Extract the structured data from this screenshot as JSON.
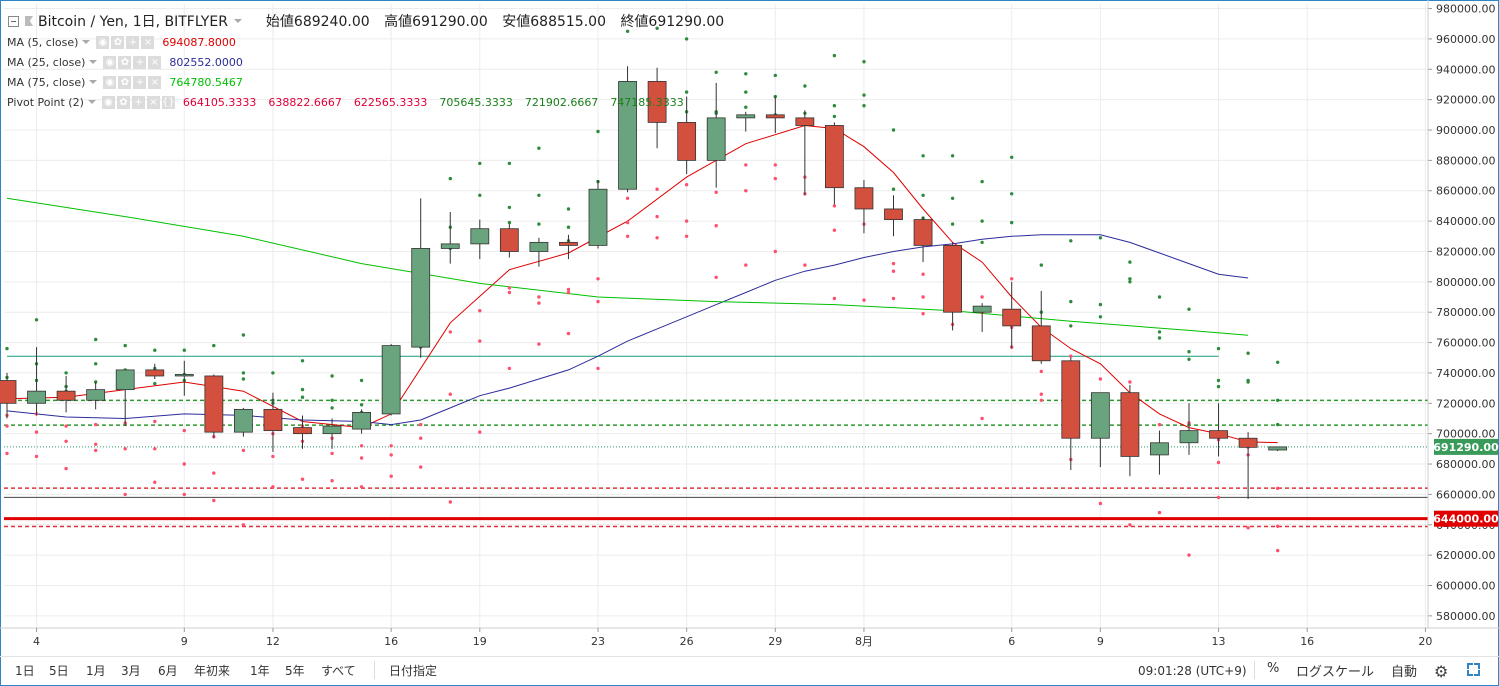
{
  "header": {
    "symbol": "Bitcoin / Yen, 1日, BITFLYER",
    "open": "始値689240.00",
    "high": "高値691290.00",
    "low": "安値688515.00",
    "close": "終値691290.00"
  },
  "indicators": [
    {
      "name": "MA (5, close)",
      "values": [
        "694087.8000"
      ],
      "colors": [
        "#e00000"
      ]
    },
    {
      "name": "MA (25, close)",
      "values": [
        "802552.0000"
      ],
      "colors": [
        "#2c2c9c"
      ]
    },
    {
      "name": "MA (75, close)",
      "values": [
        "764780.5467"
      ],
      "colors": [
        "#00c000"
      ]
    },
    {
      "name": "Pivot Point (2)",
      "values": [
        "664105.3333",
        "638822.6667",
        "622565.3333",
        "705645.3333",
        "721902.6667",
        "747185.3333"
      ],
      "colors": [
        "#e0003a",
        "#e0003a",
        "#e0003a",
        "#1a7f1a",
        "#1a7f1a",
        "#1a7f1a"
      ]
    }
  ],
  "chart_data": {
    "type": "candlestick",
    "y_axis": {
      "min": 572000,
      "max": 983000,
      "ticks": [
        580000,
        600000,
        620000,
        640000,
        660000,
        680000,
        700000,
        720000,
        740000,
        760000,
        780000,
        800000,
        820000,
        840000,
        860000,
        880000,
        900000,
        920000,
        940000,
        960000,
        980000
      ]
    },
    "y_tick_labels": [
      "580000.00",
      "600000.00",
      "620000.00",
      "640000.00",
      "660000.00",
      "680000.00",
      "700000.00",
      "720000.00",
      "740000.00",
      "760000.00",
      "780000.00",
      "800000.00",
      "820000.00",
      "840000.00",
      "860000.00",
      "880000.00",
      "900000.00",
      "920000.00",
      "940000.00",
      "960000.00",
      "980000.00"
    ],
    "x_ticks": [
      {
        "i": 1,
        "label": "4"
      },
      {
        "i": 6,
        "label": "9"
      },
      {
        "i": 9,
        "label": "12"
      },
      {
        "i": 13,
        "label": "16"
      },
      {
        "i": 16,
        "label": "19"
      },
      {
        "i": 20,
        "label": "23"
      },
      {
        "i": 23,
        "label": "26"
      },
      {
        "i": 26,
        "label": "29"
      },
      {
        "i": 29,
        "label": "8月"
      },
      {
        "i": 34,
        "label": "6"
      },
      {
        "i": 37,
        "label": "9"
      },
      {
        "i": 41,
        "label": "13"
      },
      {
        "i": 44,
        "label": "16"
      },
      {
        "i": 48,
        "label": "20"
      }
    ],
    "grid": true,
    "candles": [
      {
        "o": 735000,
        "h": 740000,
        "l": 710000,
        "c": 720000
      },
      {
        "o": 720000,
        "h": 757000,
        "l": 712000,
        "c": 728000
      },
      {
        "o": 728000,
        "h": 738000,
        "l": 714000,
        "c": 722000
      },
      {
        "o": 722000,
        "h": 734000,
        "l": 716000,
        "c": 729000
      },
      {
        "o": 729000,
        "h": 742000,
        "l": 705000,
        "c": 742000
      },
      {
        "o": 742000,
        "h": 746000,
        "l": 736000,
        "c": 738000
      },
      {
        "o": 738000,
        "h": 748000,
        "l": 725000,
        "c": 739000
      },
      {
        "o": 738000,
        "h": 739000,
        "l": 697000,
        "c": 701000
      },
      {
        "o": 701000,
        "h": 717000,
        "l": 698000,
        "c": 716000
      },
      {
        "o": 716000,
        "h": 727000,
        "l": 688000,
        "c": 702000
      },
      {
        "o": 704000,
        "h": 712000,
        "l": 690000,
        "c": 700000
      },
      {
        "o": 700000,
        "h": 710000,
        "l": 690000,
        "c": 705000
      },
      {
        "o": 703000,
        "h": 716000,
        "l": 700000,
        "c": 714000
      },
      {
        "o": 713000,
        "h": 759000,
        "l": 712000,
        "c": 758000
      },
      {
        "o": 757000,
        "h": 855000,
        "l": 750000,
        "c": 822000
      },
      {
        "o": 822000,
        "h": 846000,
        "l": 812000,
        "c": 825000
      },
      {
        "o": 825000,
        "h": 841000,
        "l": 815000,
        "c": 835000
      },
      {
        "o": 835000,
        "h": 838000,
        "l": 816000,
        "c": 820000
      },
      {
        "o": 820000,
        "h": 829000,
        "l": 810000,
        "c": 826000
      },
      {
        "o": 826000,
        "h": 831000,
        "l": 815000,
        "c": 824000
      },
      {
        "o": 824000,
        "h": 867000,
        "l": 822000,
        "c": 861000
      },
      {
        "o": 861000,
        "h": 942000,
        "l": 859000,
        "c": 932000
      },
      {
        "o": 932000,
        "h": 941000,
        "l": 888000,
        "c": 905000
      },
      {
        "o": 905000,
        "h": 922000,
        "l": 871000,
        "c": 880000
      },
      {
        "o": 880000,
        "h": 931000,
        "l": 862000,
        "c": 908000
      },
      {
        "o": 908000,
        "h": 912000,
        "l": 899000,
        "c": 910000
      },
      {
        "o": 910000,
        "h": 922000,
        "l": 898000,
        "c": 908000
      },
      {
        "o": 908000,
        "h": 913000,
        "l": 857000,
        "c": 903000
      },
      {
        "o": 903000,
        "h": 905000,
        "l": 851000,
        "c": 862000
      },
      {
        "o": 862000,
        "h": 867000,
        "l": 832000,
        "c": 848000
      },
      {
        "o": 848000,
        "h": 857000,
        "l": 830000,
        "c": 841000
      },
      {
        "o": 841000,
        "h": 843000,
        "l": 813000,
        "c": 824000
      },
      {
        "o": 824000,
        "h": 826000,
        "l": 768000,
        "c": 780000
      },
      {
        "o": 780000,
        "h": 786000,
        "l": 767000,
        "c": 784000
      },
      {
        "o": 782000,
        "h": 800000,
        "l": 756000,
        "c": 771000
      },
      {
        "o": 771000,
        "h": 794000,
        "l": 746000,
        "c": 748000
      },
      {
        "o": 748000,
        "h": 750000,
        "l": 676000,
        "c": 697000
      },
      {
        "o": 697000,
        "h": 727000,
        "l": 678000,
        "c": 727000
      },
      {
        "o": 727000,
        "h": 732000,
        "l": 672000,
        "c": 685000
      },
      {
        "o": 686000,
        "h": 702000,
        "l": 673000,
        "c": 694000
      },
      {
        "o": 694000,
        "h": 720000,
        "l": 686000,
        "c": 702000
      },
      {
        "o": 702000,
        "h": 720000,
        "l": 685000,
        "c": 697000
      },
      {
        "o": 697000,
        "h": 701000,
        "l": 657000,
        "c": 691000
      },
      {
        "o": 689240,
        "h": 691290,
        "l": 688515,
        "c": 691290
      }
    ],
    "moving_averages": [
      {
        "name": "MA (5, close)",
        "color": "#e00000",
        "points": [
          [
            0,
            723
          ],
          [
            2,
            724
          ],
          [
            4,
            729
          ],
          [
            6,
            734
          ],
          [
            8,
            728
          ],
          [
            10,
            708
          ],
          [
            12,
            704
          ],
          [
            13,
            713
          ],
          [
            15,
            773
          ],
          [
            17,
            808
          ],
          [
            19,
            819
          ],
          [
            21,
            840
          ],
          [
            23,
            869
          ],
          [
            25,
            891
          ],
          [
            27,
            903
          ],
          [
            28,
            901
          ],
          [
            29,
            889
          ],
          [
            30,
            872
          ],
          [
            31,
            848
          ],
          [
            32,
            826
          ],
          [
            33,
            813
          ],
          [
            34,
            790
          ],
          [
            35,
            770
          ],
          [
            36,
            756
          ],
          [
            37,
            746
          ],
          [
            38,
            727
          ],
          [
            39,
            713
          ],
          [
            40,
            704
          ],
          [
            41,
            700
          ],
          [
            42,
            694.6
          ],
          [
            43,
            694.1
          ]
        ]
      },
      {
        "name": "MA (25, close)",
        "color": "#2c2c9c",
        "points": [
          [
            0,
            715
          ],
          [
            2,
            711
          ],
          [
            4,
            710
          ],
          [
            6,
            713
          ],
          [
            8,
            712
          ],
          [
            10,
            709
          ],
          [
            12,
            708
          ],
          [
            13,
            706
          ],
          [
            14,
            709
          ],
          [
            15,
            717
          ],
          [
            16,
            725
          ],
          [
            17,
            730
          ],
          [
            18,
            736
          ],
          [
            19,
            742
          ],
          [
            20,
            751
          ],
          [
            21,
            761
          ],
          [
            22,
            769
          ],
          [
            23,
            777
          ],
          [
            24,
            785
          ],
          [
            25,
            793
          ],
          [
            26,
            801
          ],
          [
            27,
            807
          ],
          [
            28,
            811
          ],
          [
            29,
            816
          ],
          [
            30,
            820
          ],
          [
            31,
            823
          ],
          [
            32,
            825
          ],
          [
            33,
            828
          ],
          [
            34,
            830
          ],
          [
            35,
            831
          ],
          [
            36,
            831
          ],
          [
            37,
            831
          ],
          [
            38,
            826
          ],
          [
            39,
            819
          ],
          [
            40,
            812
          ],
          [
            41,
            805
          ],
          [
            42,
            802.5
          ]
        ]
      },
      {
        "name": "MA (75, close)",
        "color": "#00c000",
        "points": [
          [
            0,
            855
          ],
          [
            4,
            843
          ],
          [
            8,
            830
          ],
          [
            12,
            812
          ],
          [
            16,
            799
          ],
          [
            20,
            790
          ],
          [
            24,
            787
          ],
          [
            28,
            785
          ],
          [
            32,
            781
          ],
          [
            36,
            774
          ],
          [
            40,
            768
          ],
          [
            42,
            764.8
          ]
        ]
      }
    ],
    "reference_lines": [
      {
        "value": 751000,
        "color": "#1a9a7a",
        "style": "solid",
        "from": 0,
        "to": 41
      },
      {
        "value": 721903,
        "color": "#2a9a2a",
        "style": "dashed"
      },
      {
        "value": 705645,
        "color": "#2a9a2a",
        "style": "dashed"
      },
      {
        "value": 691290,
        "color": "#2a9a6a",
        "style": "dotted"
      },
      {
        "value": 664105,
        "color": "#e0303a",
        "style": "dashed"
      },
      {
        "value": 658000,
        "color": "#444444",
        "style": "solid"
      },
      {
        "value": 644000,
        "color": "#e00000",
        "style": "solid-thick"
      },
      {
        "value": 638823,
        "color": "#e0303a",
        "style": "dashed"
      }
    ],
    "price_labels": [
      {
        "value": 691290,
        "label": "691290.00",
        "color": "#3a9a5a"
      },
      {
        "value": 644000,
        "label": "644000.00",
        "color": "#e00000"
      }
    ],
    "pivot_levels": {
      "r3": [
        756,
        775,
        740,
        762,
        758,
        755,
        755,
        758,
        765,
        740,
        748,
        738,
        735,
        724,
        816,
        868,
        878,
        878,
        888,
        848,
        899,
        965,
        967,
        960,
        938,
        937,
        936,
        929,
        949,
        945,
        900,
        883,
        883,
        866,
        882,
        811,
        827,
        829,
        813,
        790,
        782,
        756,
        753,
        747
      ],
      "r2": [
        737,
        746,
        731,
        746,
        742,
        743,
        739,
        735,
        740,
        722,
        729,
        722,
        719,
        720,
        782,
        836,
        857,
        849,
        857,
        836,
        866,
        931,
        921,
        925,
        911,
        925,
        922,
        906,
        916,
        923,
        861,
        857,
        855,
        840,
        858,
        780,
        787,
        785,
        800,
        767,
        754,
        731,
        735,
        722
      ],
      "r1": [
        730,
        735,
        728,
        734,
        730,
        733,
        735,
        732,
        736,
        720,
        724,
        717,
        714,
        714,
        757,
        822,
        834,
        839,
        838,
        827,
        852,
        906,
        922,
        912,
        912,
        915,
        910,
        911,
        909,
        916,
        842,
        842,
        838,
        826,
        839,
        768,
        771,
        777,
        802,
        763,
        749,
        735,
        734,
        706
      ],
      "s1": [
        712,
        713,
        705,
        706,
        707,
        708,
        702,
        698,
        706,
        700,
        705,
        697,
        692,
        692,
        706,
        767,
        781,
        796,
        790,
        793,
        802,
        855,
        861,
        864,
        859,
        877,
        877,
        869,
        850,
        853,
        812,
        805,
        807,
        790,
        802,
        741,
        751,
        736,
        734,
        706,
        707,
        696,
        691,
        664
      ],
      "s2": [
        705,
        701,
        695,
        693,
        690,
        690,
        680,
        674,
        689,
        685,
        695,
        687,
        684,
        686,
        697,
        726,
        761,
        793,
        786,
        795,
        787,
        839,
        843,
        840,
        837,
        860,
        868,
        858,
        834,
        838,
        807,
        790,
        792,
        780,
        770,
        726,
        733,
        718,
        693,
        689,
        700,
        681,
        686,
        639
      ],
      "s3": [
        687,
        685,
        677,
        689,
        660,
        668,
        660,
        656,
        640,
        665,
        670,
        669,
        665,
        672,
        678,
        655,
        701,
        743,
        759,
        766,
        743,
        830,
        829,
        830,
        803,
        811,
        820,
        811,
        789,
        788,
        789,
        779,
        772,
        710,
        757,
        722,
        683,
        654,
        640,
        648,
        620,
        658,
        638,
        623
      ]
    }
  },
  "bottom_bar": {
    "timeframes": [
      "1日",
      "5日",
      "1月",
      "3月",
      "6月",
      "年初来",
      "1年",
      "5年",
      "すべて"
    ],
    "date_range": "日付指定",
    "clock": "09:01:28 (UTC+9)",
    "percent": "%",
    "log_scale": "ログスケール",
    "auto": "自動"
  },
  "colors": {
    "up": "#6aa47e",
    "down": "#d4503e",
    "grid": "#ececec",
    "axis_text": "#333333",
    "frame": "#2e86c9"
  }
}
